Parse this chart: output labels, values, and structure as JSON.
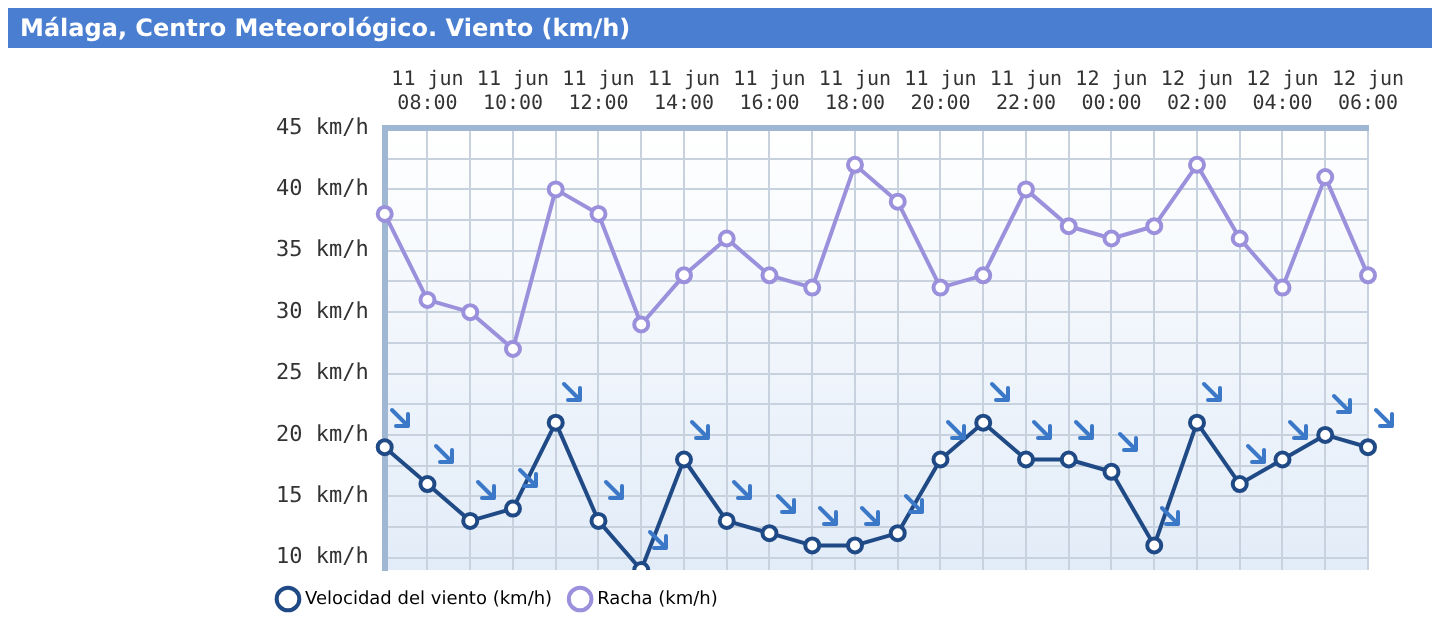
{
  "chart_data": {
    "type": "line",
    "title": "Málaga, Centro Meteorológico. Viento (km/h)",
    "categories": [
      null,
      "11 jun 08:00",
      null,
      "11 jun 10:00",
      null,
      "11 jun 12:00",
      null,
      "11 jun 14:00",
      null,
      "11 jun 16:00",
      null,
      "11 jun 18:00",
      null,
      "11 jun 20:00",
      null,
      "11 jun 22:00",
      null,
      "12 jun 00:00",
      null,
      "12 jun 02:00",
      null,
      "12 jun 04:00",
      null,
      "12 jun 06:00"
    ],
    "series": [
      {
        "name": "Velocidad del viento (km/h)",
        "color": "#1f4a86",
        "values": [
          19,
          16,
          13,
          14,
          21,
          13,
          9,
          18,
          13,
          12,
          11,
          11,
          12,
          18,
          21,
          18,
          18,
          17,
          11,
          21,
          16,
          18,
          20,
          19
        ]
      },
      {
        "name": "Racha (km/h)",
        "color": "#9a90dc",
        "values": [
          38,
          31,
          30,
          27,
          40,
          38,
          29,
          33,
          36,
          33,
          32,
          42,
          39,
          32,
          33,
          40,
          37,
          36,
          37,
          42,
          36,
          32,
          41,
          33
        ]
      }
    ],
    "ylim": [
      9,
      45
    ],
    "yticks": [
      {
        "value": 10,
        "label": "10 km/h"
      },
      {
        "value": 12.5,
        "label": null
      },
      {
        "value": 15,
        "label": "15 km/h"
      },
      {
        "value": 17.5,
        "label": null
      },
      {
        "value": 20,
        "label": "20 km/h"
      },
      {
        "value": 22.5,
        "label": null
      },
      {
        "value": 25,
        "label": "25 km/h"
      },
      {
        "value": 27.5,
        "label": null
      },
      {
        "value": 30,
        "label": "30 km/h"
      },
      {
        "value": 32.5,
        "label": null
      },
      {
        "value": 35,
        "label": "35 km/h"
      },
      {
        "value": 37.5,
        "label": null
      },
      {
        "value": 40,
        "label": "40 km/h"
      },
      {
        "value": 42.5,
        "label": null
      },
      {
        "value": 45,
        "label": "45 km/h"
      }
    ],
    "grid": true,
    "legend": "bottom left",
    "marker": "circle",
    "line_style": "solid"
  }
}
